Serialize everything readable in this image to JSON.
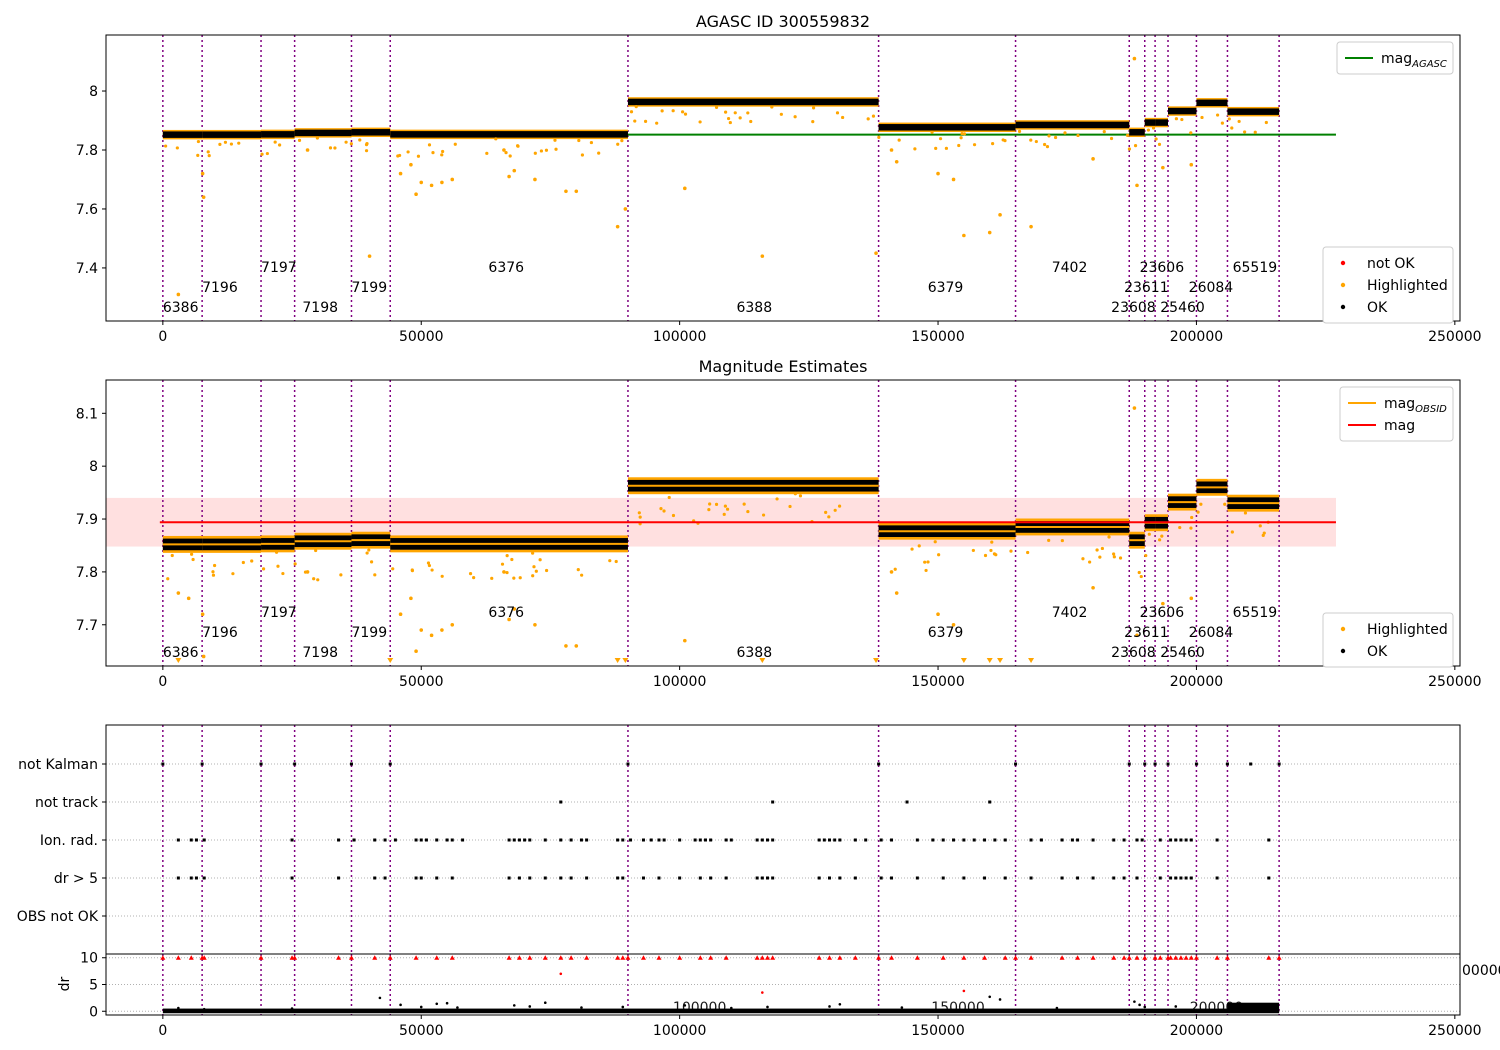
{
  "chart_data": [
    {
      "type": "scatter",
      "title": "AGASC ID 300559832",
      "xlim": [
        -11000,
        251000
      ],
      "ylim": [
        7.22,
        8.19
      ],
      "xticks": [
        0,
        50000,
        100000,
        150000,
        200000,
        250000
      ],
      "yticks": [
        7.4,
        7.6,
        7.8,
        8.0
      ],
      "reference_line": {
        "label": "mag_AGASC",
        "value": 7.852,
        "color": "#008000",
        "x_range": [
          0,
          227000
        ]
      },
      "obs_boundaries": [
        0,
        7600,
        19000,
        25500,
        36500,
        44000,
        90000,
        138500,
        165000,
        187000,
        190000,
        192000,
        194500,
        200000,
        206000,
        216000
      ],
      "segments": [
        {
          "x0": 0,
          "x1": 7600,
          "mag": 7.852
        },
        {
          "x0": 7600,
          "x1": 19000,
          "mag": 7.852
        },
        {
          "x0": 19000,
          "x1": 25500,
          "mag": 7.853
        },
        {
          "x0": 25500,
          "x1": 36500,
          "mag": 7.858
        },
        {
          "x0": 36500,
          "x1": 44000,
          "mag": 7.86
        },
        {
          "x0": 44000,
          "x1": 90000,
          "mag": 7.853
        },
        {
          "x0": 90000,
          "x1": 138500,
          "mag": 7.963
        },
        {
          "x0": 138500,
          "x1": 165000,
          "mag": 7.877
        },
        {
          "x0": 165000,
          "x1": 187000,
          "mag": 7.885
        },
        {
          "x0": 187000,
          "x1": 190000,
          "mag": 7.86
        },
        {
          "x0": 190000,
          "x1": 192000,
          "mag": 7.893
        },
        {
          "x0": 192000,
          "x1": 194500,
          "mag": 7.893
        },
        {
          "x0": 194500,
          "x1": 200000,
          "mag": 7.932
        },
        {
          "x0": 200000,
          "x1": 206000,
          "mag": 7.96
        },
        {
          "x0": 206000,
          "x1": 216000,
          "mag": 7.93
        }
      ],
      "highlighted_outliers": [
        [
          3000,
          7.31
        ],
        [
          7700,
          7.72
        ],
        [
          7900,
          7.64
        ],
        [
          28000,
          7.8
        ],
        [
          40000,
          7.44
        ],
        [
          46000,
          7.72
        ],
        [
          48000,
          7.75
        ],
        [
          49000,
          7.65
        ],
        [
          50000,
          7.69
        ],
        [
          52000,
          7.68
        ],
        [
          54000,
          7.69
        ],
        [
          56000,
          7.7
        ],
        [
          66000,
          7.8
        ],
        [
          67000,
          7.71
        ],
        [
          68000,
          7.73
        ],
        [
          72000,
          7.7
        ],
        [
          78000,
          7.66
        ],
        [
          80000,
          7.66
        ],
        [
          88000,
          7.54
        ],
        [
          89500,
          7.6
        ],
        [
          101000,
          7.67
        ],
        [
          116000,
          7.44
        ],
        [
          138000,
          7.45
        ],
        [
          141000,
          7.8
        ],
        [
          142000,
          7.76
        ],
        [
          150000,
          7.72
        ],
        [
          153000,
          7.7
        ],
        [
          155000,
          7.51
        ],
        [
          160000,
          7.52
        ],
        [
          162000,
          7.58
        ],
        [
          168000,
          7.54
        ],
        [
          180000,
          7.77
        ],
        [
          188000,
          8.11
        ],
        [
          188500,
          7.68
        ],
        [
          193500,
          7.74
        ],
        [
          199000,
          7.75
        ]
      ],
      "obs_labels": [
        {
          "text": "6386",
          "x": 0,
          "row": 2
        },
        {
          "text": "7196",
          "x": 7600,
          "row": 1
        },
        {
          "text": "7197",
          "x": 19000,
          "row": 0
        },
        {
          "text": "7198",
          "x": 27000,
          "row": 2
        },
        {
          "text": "7199",
          "x": 36500,
          "row": 1
        },
        {
          "text": "6376",
          "x": 63000,
          "row": 0
        },
        {
          "text": "6388",
          "x": 111000,
          "row": 2
        },
        {
          "text": "6379",
          "x": 148000,
          "row": 1
        },
        {
          "text": "7402",
          "x": 172000,
          "row": 0
        },
        {
          "text": "23606",
          "x": 189000,
          "row": 0
        },
        {
          "text": "23611",
          "x": 186000,
          "row": 1
        },
        {
          "text": "23608",
          "x": 183500,
          "row": 2
        },
        {
          "text": "25460",
          "x": 193000,
          "row": 2
        },
        {
          "text": "26084",
          "x": 198500,
          "row": 1
        },
        {
          "text": "65519",
          "x": 207000,
          "row": 0
        }
      ],
      "legend_upper": {
        "items": [
          {
            "label": "mag",
            "subscript": "AGASC",
            "color": "#008000"
          }
        ],
        "location": "top-right"
      },
      "legend_lower": {
        "items": [
          {
            "label": "not OK",
            "color": "#ff0000"
          },
          {
            "label": "Highlighted",
            "color": "#ffa500"
          },
          {
            "label": "OK",
            "color": "#000000"
          }
        ],
        "location": "bottom-right"
      }
    },
    {
      "type": "scatter",
      "title": "Magnitude Estimates",
      "xlim": [
        -11000,
        251000
      ],
      "ylim": [
        7.622,
        8.163
      ],
      "xticks": [
        0,
        50000,
        100000,
        150000,
        200000,
        250000
      ],
      "yticks": [
        7.7,
        7.8,
        7.9,
        8.0,
        8.1
      ],
      "reference_line": {
        "label": "mag",
        "value": 7.894,
        "color": "#ff0000",
        "x_range": [
          -11000,
          227000
        ]
      },
      "band": {
        "low": 7.848,
        "high": 7.94,
        "color": "#ffcccc",
        "x_range": [
          -11000,
          227000
        ]
      },
      "obs_line_color": "#ffa500",
      "below_range_markers": [
        3000,
        44000,
        88000,
        89500,
        116000,
        138000,
        155000,
        160000,
        162000,
        168000
      ],
      "highlighted_outliers": [
        [
          3000,
          7.76
        ],
        [
          5000,
          7.75
        ],
        [
          7700,
          7.72
        ],
        [
          7900,
          7.64
        ],
        [
          28000,
          7.8
        ],
        [
          46000,
          7.72
        ],
        [
          48000,
          7.75
        ],
        [
          49000,
          7.65
        ],
        [
          50000,
          7.69
        ],
        [
          52000,
          7.68
        ],
        [
          54000,
          7.69
        ],
        [
          56000,
          7.7
        ],
        [
          66000,
          7.8
        ],
        [
          67000,
          7.71
        ],
        [
          68000,
          7.73
        ],
        [
          72000,
          7.7
        ],
        [
          78000,
          7.66
        ],
        [
          80000,
          7.66
        ],
        [
          101000,
          7.67
        ],
        [
          141000,
          7.8
        ],
        [
          142000,
          7.76
        ],
        [
          150000,
          7.72
        ],
        [
          153000,
          7.7
        ],
        [
          180000,
          7.77
        ],
        [
          188000,
          8.11
        ],
        [
          188500,
          7.68
        ],
        [
          193500,
          7.74
        ],
        [
          199000,
          7.75
        ]
      ],
      "legend_upper": {
        "items": [
          {
            "label": "mag",
            "subscript": "OBSID",
            "color": "#ffa500"
          },
          {
            "label": "mag",
            "color": "#ff0000"
          }
        ],
        "location": "top-right"
      },
      "legend_lower": {
        "items": [
          {
            "label": "Highlighted",
            "color": "#ffa500"
          },
          {
            "label": "OK",
            "color": "#000000"
          }
        ],
        "location": "bottom-right"
      }
    },
    {
      "type": "scatter",
      "title": "",
      "xlim": [
        -11000,
        251000
      ],
      "categories": [
        "not Kalman",
        "not track",
        "Ion. rad.",
        "dr > 5",
        "OBS not OK"
      ],
      "flags": {
        "not Kalman": [
          0,
          7600,
          19000,
          25500,
          36500,
          44000,
          90000,
          138500,
          165000,
          187000,
          190000,
          192000,
          194500,
          200000,
          206000,
          210500,
          216000
        ],
        "not track": [
          77000,
          118000,
          144000,
          160000
        ],
        "Ion. rad.": [
          3000,
          5500,
          6500,
          8000,
          25000,
          34000,
          37000,
          41000,
          43000,
          45000,
          49000,
          50000,
          51000,
          53000,
          55000,
          56000,
          58000,
          67000,
          68000,
          69000,
          70000,
          71000,
          74000,
          77000,
          79000,
          81000,
          82000,
          88000,
          89000,
          90500,
          93000,
          94500,
          96000,
          97000,
          100000,
          103000,
          104000,
          105000,
          106000,
          109000,
          110000,
          115000,
          116000,
          117000,
          118000,
          127000,
          128000,
          129000,
          130000,
          131000,
          134000,
          136000,
          139000,
          141000,
          146000,
          149000,
          151000,
          153000,
          155000,
          157000,
          159000,
          161000,
          163000,
          168000,
          170000,
          174000,
          176000,
          177000,
          180000,
          184000,
          186000,
          188500,
          189500,
          193000,
          195000,
          196000,
          197000,
          198000,
          199000,
          204000,
          214000
        ],
        "dr > 5": [
          3000,
          5500,
          6500,
          8000,
          25000,
          34000,
          41000,
          43000,
          49000,
          50000,
          53000,
          56000,
          67000,
          69000,
          71000,
          74000,
          77000,
          79000,
          82000,
          88000,
          89000,
          93000,
          96000,
          100000,
          104000,
          106000,
          109000,
          115000,
          116000,
          117000,
          118000,
          127000,
          129000,
          131000,
          134000,
          139000,
          141000,
          146000,
          151000,
          155000,
          159000,
          163000,
          168000,
          174000,
          177000,
          180000,
          184000,
          186000,
          188500,
          193000,
          195000,
          196000,
          197000,
          198000,
          199000,
          204000,
          214000
        ],
        "OBS not OK": []
      }
    },
    {
      "type": "scatter",
      "title": "",
      "ylabel": "dr",
      "xlim": [
        -11000,
        251000
      ],
      "ylim": [
        -0.7,
        10.7
      ],
      "xticks": [
        0,
        50000,
        100000,
        150000,
        200000,
        250000
      ],
      "yticks": [
        0,
        5,
        10
      ],
      "hidden_tick_fragment": "00000",
      "dr_clipped_at_10": [
        0,
        3000,
        5500,
        7600,
        8000,
        19000,
        25000,
        25500,
        34000,
        36500,
        41000,
        44000,
        49000,
        53000,
        56000,
        67000,
        69000,
        71000,
        74000,
        77000,
        79000,
        82000,
        88000,
        89000,
        90000,
        93000,
        96000,
        100000,
        104000,
        106000,
        109000,
        115000,
        116000,
        117000,
        118000,
        127000,
        129000,
        131000,
        134000,
        138500,
        141000,
        146000,
        151000,
        155000,
        159000,
        163000,
        165000,
        168000,
        174000,
        177000,
        180000,
        184000,
        186000,
        187000,
        188500,
        190000,
        192000,
        193000,
        194500,
        195000,
        196000,
        197000,
        198000,
        199000,
        200000,
        204000,
        206000,
        214000,
        216000
      ],
      "dr_red_mid": [
        [
          77000,
          7
        ],
        [
          116000,
          3.5
        ],
        [
          155000,
          3.8
        ]
      ],
      "dr_black_scatter": [
        [
          3000,
          0.6
        ],
        [
          8000,
          0.4
        ],
        [
          25000,
          0.5
        ],
        [
          42000,
          2.5
        ],
        [
          46000,
          1.2
        ],
        [
          50000,
          0.8
        ],
        [
          53000,
          1.4
        ],
        [
          55000,
          1.5
        ],
        [
          57000,
          0.7
        ],
        [
          68000,
          1.1
        ],
        [
          71000,
          0.9
        ],
        [
          74000,
          1.6
        ],
        [
          81000,
          0.7
        ],
        [
          89000,
          0.8
        ],
        [
          101000,
          1.1
        ],
        [
          110000,
          0.6
        ],
        [
          117000,
          0.8
        ],
        [
          129000,
          0.9
        ],
        [
          131000,
          1.3
        ],
        [
          143000,
          0.7
        ],
        [
          160000,
          2.7
        ],
        [
          162000,
          2.2
        ],
        [
          173000,
          0.6
        ],
        [
          188000,
          1.8
        ],
        [
          189000,
          1.2
        ],
        [
          190000,
          0.8
        ],
        [
          196000,
          0.9
        ]
      ]
    }
  ]
}
